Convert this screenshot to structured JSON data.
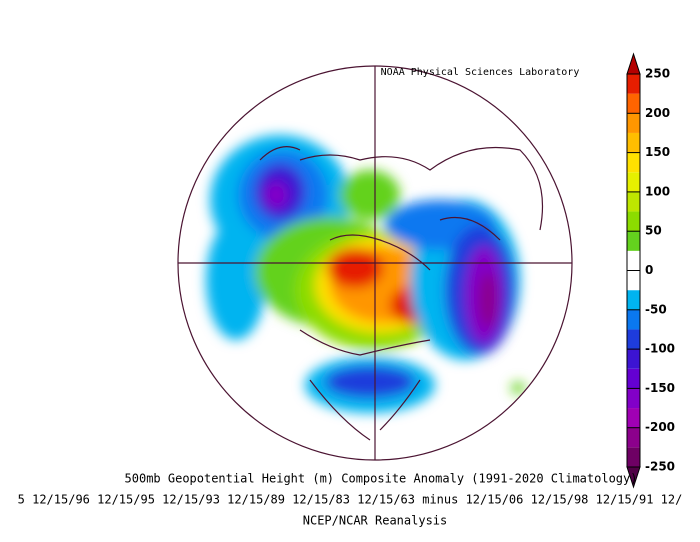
{
  "header": {
    "credit": "NOAA Physical Sciences Laboratory"
  },
  "caption": {
    "title": "500mb Geopotential Height (m) Composite Anomaly (1991-2020 Climatology)",
    "periods": "5 12/15/96 12/15/95 12/15/93 12/15/89 12/15/83 12/15/63 minus 12/15/06 12/15/98 12/15/91 12/",
    "source": "NCEP/NCAR Reanalysis"
  },
  "colorbar": {
    "lim": [
      -250,
      250
    ],
    "levels": [
      -250,
      -225,
      -200,
      -175,
      -150,
      -125,
      -100,
      -75,
      -50,
      -25,
      0,
      25,
      50,
      75,
      100,
      125,
      150,
      175,
      200,
      225,
      250
    ],
    "colors": [
      "#6e0064",
      "#8c008c",
      "#a000b4",
      "#8200c8",
      "#6400d2",
      "#3c14d2",
      "#1e3cdc",
      "#0a78f0",
      "#00b4f0",
      "#ffffff",
      "#ffffff",
      "#64d21e",
      "#8cdc00",
      "#bee600",
      "#e6f000",
      "#ffe100",
      "#ffbe00",
      "#ff9600",
      "#ff6400",
      "#e61e00"
    ],
    "over_color": "#b40000",
    "under_color": "#500046",
    "ticks": [
      250,
      200,
      150,
      100,
      50,
      0,
      -50,
      -100,
      -150,
      -200,
      -250
    ]
  }
}
